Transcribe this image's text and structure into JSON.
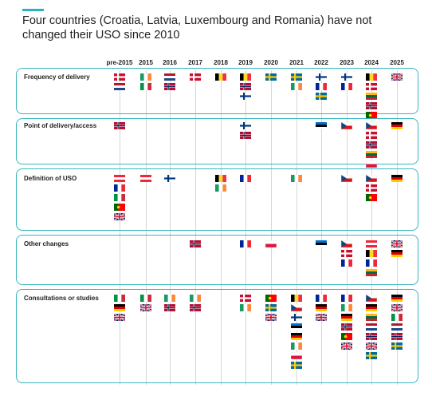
{
  "title": "Four countries (Croatia, Latvia, Luxembourg and Romania) have not changed their USO since 2010",
  "accent_color": "#2bb3bd",
  "years": [
    "pre-2015",
    "2015",
    "2016",
    "2017",
    "2018",
    "2019",
    "2020",
    "2021",
    "2022",
    "2023",
    "2024",
    "2025"
  ],
  "categories": [
    {
      "label": "Frequency of delivery",
      "cells": [
        {
          "year": "pre-2015",
          "flags": [
            "denmark",
            "netherlands"
          ]
        },
        {
          "year": "2015",
          "flags": [
            "ireland",
            "italy"
          ]
        },
        {
          "year": "2016",
          "flags": [
            "netherlands",
            "norway"
          ]
        },
        {
          "year": "2017",
          "flags": [
            "denmark"
          ]
        },
        {
          "year": "2018",
          "flags": [
            "belgium"
          ]
        },
        {
          "year": "2019",
          "flags": [
            "belgium",
            "norway",
            "finland"
          ]
        },
        {
          "year": "2020",
          "flags": [
            "sweden"
          ]
        },
        {
          "year": "2021",
          "flags": [
            "sweden",
            "ireland"
          ]
        },
        {
          "year": "2022",
          "flags": [
            "finland",
            "france",
            "sweden"
          ]
        },
        {
          "year": "2023",
          "flags": [
            "finland",
            "france"
          ]
        },
        {
          "year": "2024",
          "flags": [
            "belgium",
            "denmark",
            "lithuania",
            "norway",
            "portugal"
          ]
        },
        {
          "year": "2025",
          "flags": [
            "uk"
          ]
        }
      ]
    },
    {
      "label": "Point of delivery/access",
      "cells": [
        {
          "year": "pre-2015",
          "flags": [
            "norway"
          ]
        },
        {
          "year": "2019",
          "flags": [
            "finland",
            "norway"
          ]
        },
        {
          "year": "2022",
          "flags": [
            "estonia"
          ]
        },
        {
          "year": "2023",
          "flags": [
            "czechia"
          ]
        },
        {
          "year": "2024",
          "flags": [
            "czechia",
            "denmark",
            "norway",
            "lithuania",
            "poland"
          ]
        },
        {
          "year": "2025",
          "flags": [
            "germany"
          ]
        }
      ]
    },
    {
      "label": "Definition of USO",
      "cells": [
        {
          "year": "pre-2015",
          "flags": [
            "austria",
            "france",
            "italy",
            "portugal",
            "uk"
          ]
        },
        {
          "year": "2015",
          "flags": [
            "austria"
          ]
        },
        {
          "year": "2016",
          "flags": [
            "finland"
          ]
        },
        {
          "year": "2018",
          "flags": [
            "belgium",
            "ireland"
          ]
        },
        {
          "year": "2019",
          "flags": [
            "france"
          ]
        },
        {
          "year": "2021",
          "flags": [
            "ireland"
          ]
        },
        {
          "year": "2023",
          "flags": [
            "czechia"
          ]
        },
        {
          "year": "2024",
          "flags": [
            "czechia",
            "denmark",
            "portugal"
          ]
        },
        {
          "year": "2025",
          "flags": [
            "germany"
          ]
        }
      ]
    },
    {
      "label": "Other changes",
      "cells": [
        {
          "year": "2017",
          "flags": [
            "norway"
          ]
        },
        {
          "year": "2019",
          "flags": [
            "france"
          ]
        },
        {
          "year": "2020",
          "flags": [
            "poland"
          ]
        },
        {
          "year": "2022",
          "flags": [
            "estonia"
          ]
        },
        {
          "year": "2023",
          "flags": [
            "czechia",
            "denmark",
            "france"
          ]
        },
        {
          "year": "2024",
          "flags": [
            "austria",
            "belgium",
            "france",
            "lithuania"
          ]
        },
        {
          "year": "2025",
          "flags": [
            "uk",
            "germany"
          ]
        }
      ]
    },
    {
      "label": "Consultations or studies",
      "cells": [
        {
          "year": "pre-2015",
          "flags": [
            "italy",
            "germany",
            "uk"
          ]
        },
        {
          "year": "2015",
          "flags": [
            "italy",
            "uk"
          ]
        },
        {
          "year": "2016",
          "flags": [
            "ireland",
            "norway"
          ]
        },
        {
          "year": "2017",
          "flags": [
            "ireland",
            "norway"
          ]
        },
        {
          "year": "2019",
          "flags": [
            "denmark",
            "ireland"
          ]
        },
        {
          "year": "2020",
          "flags": [
            "portugal",
            "sweden",
            "uk"
          ]
        },
        {
          "year": "2021",
          "flags": [
            "belgium",
            "czechia",
            "finland",
            "estonia",
            "germany",
            "ireland",
            "poland",
            "sweden"
          ]
        },
        {
          "year": "2022",
          "flags": [
            "france",
            "germany",
            "uk"
          ]
        },
        {
          "year": "2023",
          "flags": [
            "france",
            "ireland",
            "germany",
            "norway",
            "portugal",
            "uk"
          ]
        },
        {
          "year": "2024",
          "flags": [
            "czechia",
            "germany",
            "lithuania",
            "netherlands",
            "norway",
            "uk",
            "sweden"
          ]
        },
        {
          "year": "2025",
          "flags": [
            "germany",
            "uk",
            "italy",
            "netherlands",
            "norway",
            "sweden"
          ]
        }
      ]
    }
  ],
  "flag_colors": {
    "denmark": "#c8102e",
    "netherlands_red": "#ae1c28",
    "netherlands_blue": "#21468b",
    "ireland_green": "#169b62",
    "ireland_orange": "#ff883e",
    "italy_green": "#009246",
    "italy_red": "#ce2b37",
    "norway_red": "#ba0c2f",
    "norway_blue": "#00205b",
    "belgium_black": "#000000",
    "belgium_yellow": "#fdda24",
    "belgium_red": "#ef3340",
    "finland_blue": "#003580",
    "sweden_blue": "#006aa7",
    "sweden_yellow": "#fecc00",
    "france_blue": "#002395",
    "france_red": "#ed2939",
    "lithuania_yellow": "#fdb913",
    "lithuania_green": "#006a44",
    "lithuania_red": "#c1272d",
    "portugal_green": "#006600",
    "portugal_red": "#ff0000",
    "uk_blue": "#012169",
    "uk_red": "#c8102e",
    "estonia_blue": "#0072ce",
    "czechia_blue": "#11457e",
    "czechia_red": "#d7141a",
    "germany_red": "#dd0000",
    "germany_gold": "#ffce00",
    "poland_red": "#dc143c",
    "austria_red": "#ed2939"
  }
}
